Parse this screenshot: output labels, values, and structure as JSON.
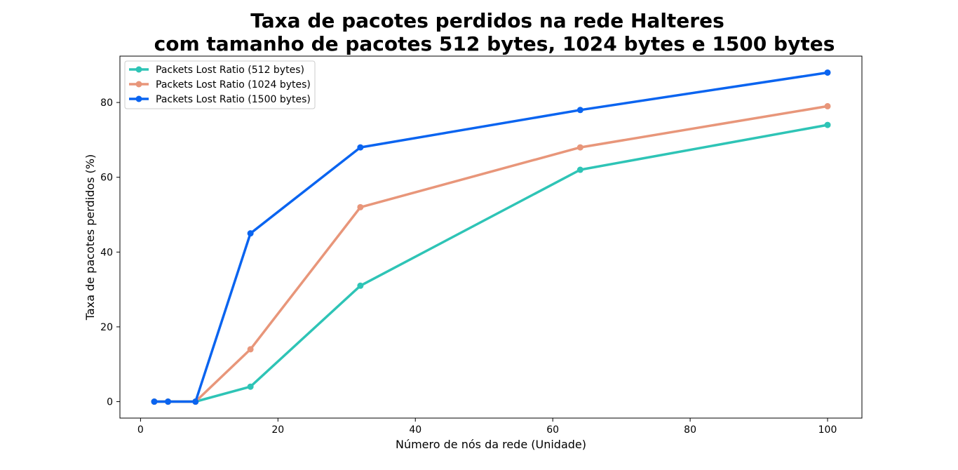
{
  "chart_data": {
    "type": "line",
    "title_lines": [
      "Taxa de pacotes perdidos na rede Halteres",
      "com tamanho de pacotes 512 bytes, 1024 bytes e 1500 bytes"
    ],
    "xlabel": "Número de nós da rede (Unidade)",
    "ylabel": "Taxa de pacotes perdidos (%)",
    "xlim": [
      -3,
      105
    ],
    "ylim": [
      -4.4,
      92.4
    ],
    "xticks": [
      0,
      20,
      40,
      60,
      80,
      100
    ],
    "yticks": [
      0,
      20,
      40,
      60,
      80
    ],
    "x": [
      2,
      4,
      8,
      16,
      32,
      64,
      100
    ],
    "grid": false,
    "legend_position": "upper-left",
    "series": [
      {
        "name": "Packets Lost Ratio (512 bytes)",
        "color": "#2ec4b6",
        "values": [
          0,
          0,
          0,
          4,
          31,
          62,
          74
        ]
      },
      {
        "name": "Packets Lost Ratio (1024 bytes)",
        "color": "#e8967a",
        "values": [
          0,
          0,
          0,
          14,
          52,
          68,
          79
        ]
      },
      {
        "name": "Packets Lost Ratio (1500 bytes)",
        "color": "#0a64f0",
        "values": [
          0,
          0,
          0,
          45,
          68,
          78,
          88
        ]
      }
    ]
  }
}
